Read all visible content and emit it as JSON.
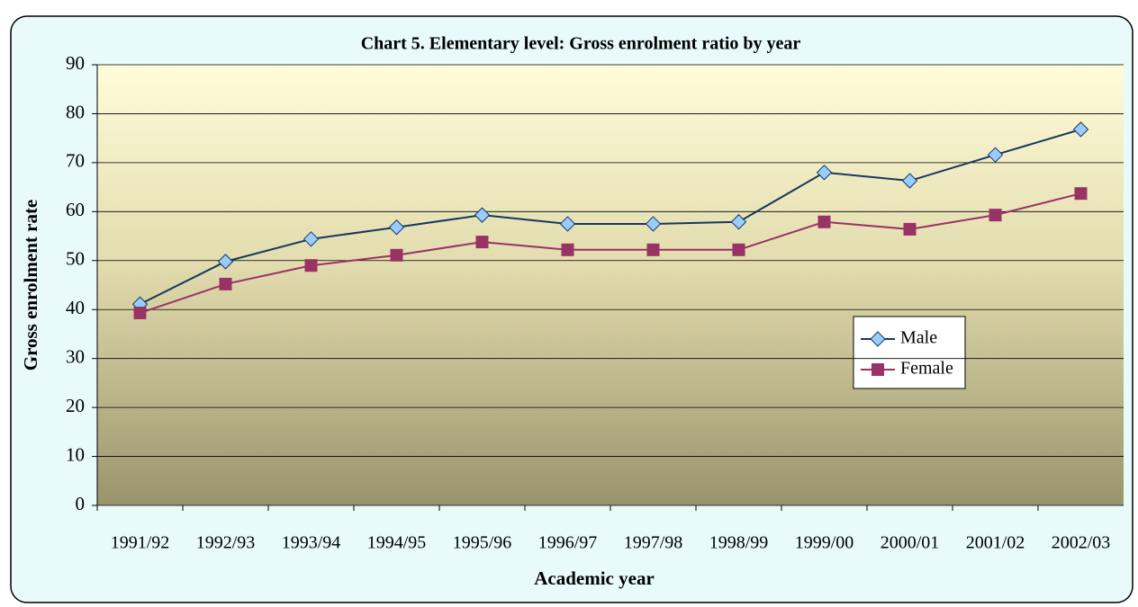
{
  "chart_data": {
    "type": "line",
    "title": "Chart 5. Elementary level:  Gross enrolment ratio by year",
    "x_label": "Academic year",
    "y_label": "Gross enrolment rate",
    "categories": [
      "1991/92",
      "1992/93",
      "1993/94",
      "1994/95",
      "1995/96",
      "1996/97",
      "1997/98",
      "1998/99",
      "1999/00",
      "2000/01",
      "2001/02",
      "2002/03"
    ],
    "series": [
      {
        "name": "Male",
        "color": "#17375e",
        "marker_color": "#99ccff",
        "marker": "diamond",
        "values": [
          41.1,
          49.8,
          54.4,
          56.8,
          59.3,
          57.5,
          57.5,
          57.9,
          68.0,
          66.3,
          71.6,
          76.8
        ]
      },
      {
        "name": "Female",
        "color": "#993366",
        "marker_color": "#993366",
        "marker": "square",
        "values": [
          39.3,
          45.2,
          49.0,
          51.1,
          53.8,
          52.2,
          52.2,
          52.2,
          57.9,
          56.4,
          59.3,
          63.7
        ]
      }
    ],
    "ylim": [
      0,
      90
    ],
    "yticks": [
      0,
      10,
      20,
      30,
      40,
      50,
      60,
      70,
      80,
      90
    ],
    "grid": true
  }
}
